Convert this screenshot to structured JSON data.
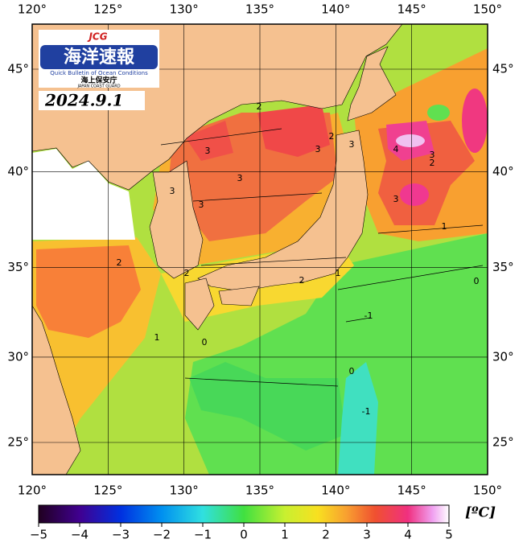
{
  "header": {
    "logo_mark": "JCG",
    "logo_title": "海洋速報",
    "logo_subtitle": "Quick Bulletin of Ocean Conditions",
    "agency": "海上保安庁",
    "agency_en": "JAPAN COAST GUARD",
    "date": "2024.9.1"
  },
  "map": {
    "lon_ticks": [
      {
        "value": 120,
        "label": "120°"
      },
      {
        "value": 125,
        "label": "125°"
      },
      {
        "value": 130,
        "label": "130°"
      },
      {
        "value": 135,
        "label": "135°"
      },
      {
        "value": 140,
        "label": "140°"
      },
      {
        "value": 145,
        "label": "145°"
      },
      {
        "value": 150,
        "label": "150°"
      }
    ],
    "lat_ticks": [
      {
        "value": 25,
        "label": "25°"
      },
      {
        "value": 30,
        "label": "30°"
      },
      {
        "value": 35,
        "label": "35°"
      },
      {
        "value": 40,
        "label": "40°"
      },
      {
        "value": 45,
        "label": "45°"
      }
    ],
    "contour_labels": [
      "2",
      "3",
      "3",
      "3",
      "3",
      "3",
      "2",
      "3",
      "4",
      "3",
      "2",
      "3",
      "1",
      "2",
      "2",
      "2",
      "1",
      "0",
      "-1",
      "0",
      "-1",
      "1",
      "0"
    ]
  },
  "colorbar": {
    "lim": [
      -5,
      5
    ],
    "unit": "[ºC]",
    "ticks": [
      {
        "value": -5,
        "label": "−5"
      },
      {
        "value": -4,
        "label": "−4"
      },
      {
        "value": -3,
        "label": "−3"
      },
      {
        "value": -2,
        "label": "−2"
      },
      {
        "value": -1,
        "label": "−1"
      },
      0,
      1,
      2,
      3,
      4,
      5
    ]
  }
}
